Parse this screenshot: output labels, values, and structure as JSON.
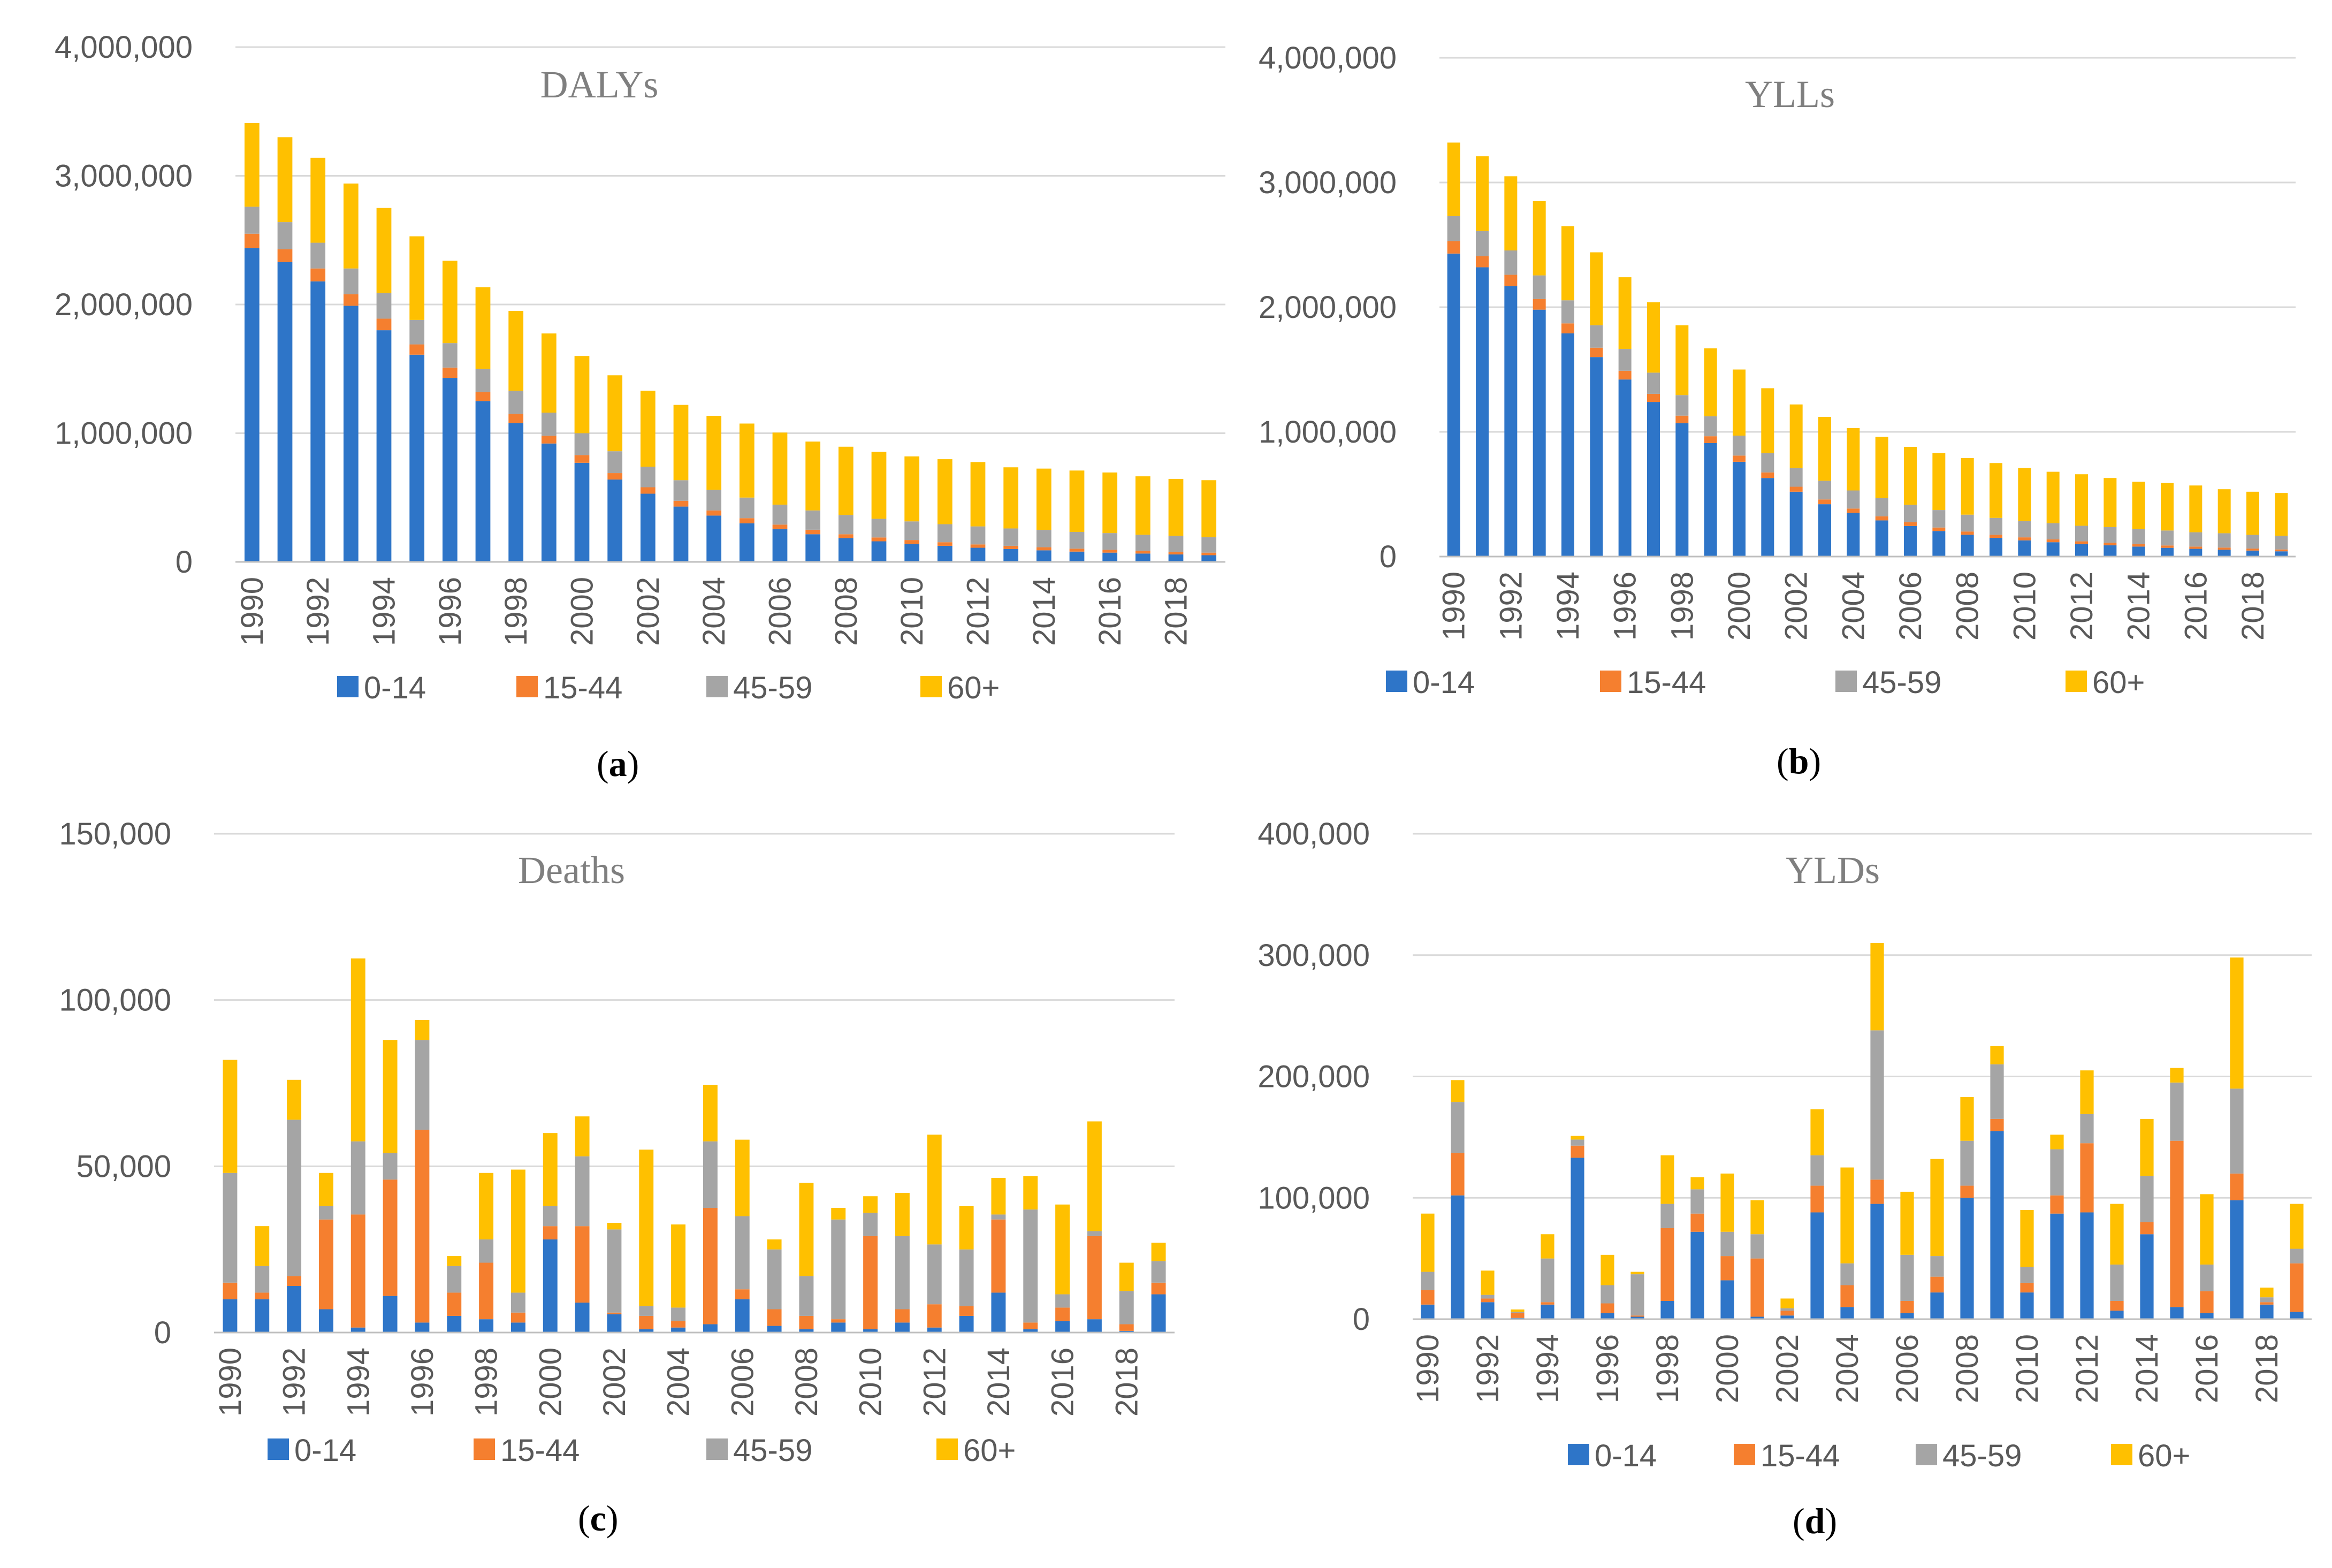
{
  "figure": {
    "series_colors": {
      "0-14": "#2e75c8",
      "15-44": "#f57f2f",
      "45-59": "#a5a5a5",
      "60+": "#ffc000"
    }
  },
  "chart_data": [
    {
      "id": "a",
      "type": "stacked-bar",
      "title": "DALYs",
      "caption_letter": "a",
      "ylim": [
        0,
        4000000
      ],
      "yticks": [
        0,
        1000000,
        2000000,
        3000000,
        4000000
      ],
      "ytick_labels": [
        "0",
        "1,000,000",
        "2,000,000",
        "3,000,000",
        "4,000,000"
      ],
      "xtick_labels": [
        "1990",
        "1992",
        "1994",
        "1996",
        "1998",
        "2000",
        "2002",
        "2004",
        "2006",
        "2008",
        "2010",
        "2012",
        "2014",
        "2016",
        "2018"
      ],
      "categories": [
        "1990",
        "1991",
        "1992",
        "1993",
        "1994",
        "1995",
        "1996",
        "1997",
        "1998",
        "1999",
        "2000",
        "2001",
        "2002",
        "2003",
        "2004",
        "2005",
        "2006",
        "2007",
        "2008",
        "2009",
        "2010",
        "2011",
        "2012",
        "2013",
        "2014",
        "2015",
        "2016",
        "2017",
        "2018",
        "2019"
      ],
      "series": [
        {
          "name": "0-14",
          "values": [
            2440000,
            2330000,
            2180000,
            1990000,
            1800000,
            1610000,
            1430000,
            1250000,
            1080000,
            920000,
            770000,
            640000,
            530000,
            430000,
            360000,
            300000,
            255000,
            215000,
            185000,
            160000,
            140000,
            125000,
            110000,
            100000,
            90000,
            80000,
            72000,
            65000,
            58000,
            52000
          ]
        },
        {
          "name": "15-44",
          "values": [
            110000,
            100000,
            100000,
            90000,
            90000,
            80000,
            80000,
            70000,
            70000,
            60000,
            60000,
            50000,
            50000,
            45000,
            40000,
            40000,
            35000,
            35000,
            30000,
            30000,
            30000,
            28000,
            26000,
            25000,
            24000,
            23000,
            22000,
            21000,
            20000,
            20000
          ]
        },
        {
          "name": "45-59",
          "values": [
            210000,
            210000,
            200000,
            200000,
            200000,
            190000,
            190000,
            180000,
            180000,
            180000,
            170000,
            170000,
            160000,
            160000,
            160000,
            160000,
            155000,
            150000,
            150000,
            145000,
            145000,
            140000,
            140000,
            135000,
            135000,
            130000,
            130000,
            125000,
            125000,
            120000
          ]
        },
        {
          "name": "60+",
          "values": [
            650000,
            660000,
            660000,
            660000,
            660000,
            650000,
            640000,
            635000,
            620000,
            615000,
            600000,
            590000,
            590000,
            585000,
            575000,
            575000,
            560000,
            535000,
            530000,
            520000,
            505000,
            505000,
            500000,
            475000,
            476000,
            477000,
            471000,
            454000,
            442000,
            443000
          ]
        }
      ]
    },
    {
      "id": "b",
      "type": "stacked-bar",
      "title": "YLLs",
      "caption_letter": "b",
      "ylim": [
        0,
        4000000
      ],
      "yticks": [
        0,
        1000000,
        2000000,
        3000000,
        4000000
      ],
      "ytick_labels": [
        "0",
        "1,000,000",
        "2,000,000",
        "3,000,000",
        "4,000,000"
      ],
      "xtick_labels": [
        "1990",
        "1992",
        "1994",
        "1996",
        "1998",
        "2000",
        "2002",
        "2004",
        "2006",
        "2008",
        "2010",
        "2012",
        "2014",
        "2016",
        "2018"
      ],
      "categories": [
        "1990",
        "1991",
        "1992",
        "1993",
        "1994",
        "1995",
        "1996",
        "1997",
        "1998",
        "1999",
        "2000",
        "2001",
        "2002",
        "2003",
        "2004",
        "2005",
        "2006",
        "2007",
        "2008",
        "2009",
        "2010",
        "2011",
        "2012",
        "2013",
        "2014",
        "2015",
        "2016",
        "2017",
        "2018",
        "2019"
      ],
      "series": [
        {
          "name": "0-14",
          "values": [
            2430000,
            2320000,
            2170000,
            1980000,
            1790000,
            1600000,
            1420000,
            1240000,
            1070000,
            910000,
            760000,
            630000,
            520000,
            420000,
            350000,
            290000,
            245000,
            205000,
            175000,
            150000,
            130000,
            115000,
            100000,
            90000,
            80000,
            70000,
            62000,
            55000,
            48000,
            42000
          ]
        },
        {
          "name": "15-44",
          "values": [
            100000,
            90000,
            90000,
            85000,
            80000,
            75000,
            70000,
            65000,
            60000,
            55000,
            50000,
            45000,
            40000,
            38000,
            35000,
            33000,
            30000,
            28000,
            26000,
            25000,
            24000,
            23000,
            22000,
            21000,
            20000,
            19000,
            18000,
            17000,
            16000,
            15000
          ]
        },
        {
          "name": "45-59",
          "values": [
            200000,
            200000,
            195000,
            190000,
            185000,
            180000,
            175000,
            170000,
            165000,
            160000,
            160000,
            155000,
            150000,
            150000,
            145000,
            145000,
            140000,
            140000,
            135000,
            135000,
            130000,
            130000,
            125000,
            125000,
            120000,
            120000,
            115000,
            115000,
            110000,
            110000
          ]
        },
        {
          "name": "60+",
          "values": [
            590000,
            600000,
            595000,
            595000,
            595000,
            585000,
            575000,
            565000,
            560000,
            545000,
            530000,
            520000,
            510000,
            512000,
            500000,
            492000,
            465000,
            457000,
            454000,
            440000,
            426000,
            412000,
            413000,
            394000,
            380000,
            381000,
            375000,
            353000,
            346000,
            343000
          ]
        }
      ]
    },
    {
      "id": "c",
      "type": "stacked-bar",
      "title": "Deaths",
      "caption_letter": "c",
      "ylim": [
        0,
        150000
      ],
      "yticks": [
        0,
        50000,
        100000,
        150000
      ],
      "ytick_labels": [
        "0",
        "50,000",
        "100,000",
        "150,000"
      ],
      "xtick_labels": [
        "1990",
        "1992",
        "1994",
        "1996",
        "1998",
        "2000",
        "2002",
        "2004",
        "2006",
        "2008",
        "2010",
        "2012",
        "2014",
        "2016",
        "2018"
      ],
      "categories": [
        "1990",
        "1991",
        "1992",
        "1993",
        "1994",
        "1995",
        "1996",
        "1997",
        "1998",
        "1999",
        "2000",
        "2001",
        "2002",
        "2003",
        "2004",
        "2005",
        "2006",
        "2007",
        "2008",
        "2009",
        "2010",
        "2011",
        "2012",
        "2013",
        "2014",
        "2015",
        "2016",
        "2017",
        "2018",
        "2019"
      ],
      "series": [
        {
          "name": "0-14",
          "values": [
            10000,
            10000,
            14000,
            7000,
            1500,
            11000,
            3000,
            5000,
            4000,
            3000,
            28000,
            9000,
            5500,
            1000,
            1500,
            2500,
            10000,
            2000,
            1000,
            3000,
            1000,
            3000,
            1500,
            5000,
            12000,
            1000,
            3500,
            4000,
            500,
            11500
          ]
        },
        {
          "name": "15-44",
          "values": [
            5000,
            2000,
            3000,
            27000,
            34000,
            35000,
            58000,
            7000,
            17000,
            3000,
            4000,
            23000,
            500,
            4000,
            2000,
            35000,
            3000,
            5000,
            4000,
            1000,
            28000,
            4000,
            7000,
            3000,
            22000,
            2000,
            4000,
            25000,
            2000,
            3500
          ]
        },
        {
          "name": "45-59",
          "values": [
            33000,
            8000,
            47000,
            4000,
            22000,
            8000,
            27000,
            8000,
            7000,
            6000,
            6000,
            21000,
            25000,
            3000,
            4000,
            20000,
            22000,
            18000,
            12000,
            30000,
            7000,
            22000,
            18000,
            17000,
            1500,
            34000,
            4000,
            1500,
            10000,
            6500
          ]
        },
        {
          "name": "60+",
          "values": [
            34000,
            12000,
            12000,
            10000,
            55000,
            34000,
            6000,
            3000,
            20000,
            37000,
            22000,
            12000,
            2000,
            47000,
            25000,
            17000,
            23000,
            3000,
            28000,
            3500,
            5000,
            13000,
            33000,
            13000,
            11000,
            10000,
            27000,
            33000,
            8500,
            5500
          ]
        }
      ]
    },
    {
      "id": "d",
      "type": "stacked-bar",
      "title": "YLDs",
      "caption_letter": "d",
      "ylim": [
        0,
        400000
      ],
      "yticks": [
        0,
        100000,
        200000,
        300000,
        400000
      ],
      "ytick_labels": [
        "0",
        "100,000",
        "200,000",
        "300,000",
        "400,000"
      ],
      "xtick_labels": [
        "1990",
        "1992",
        "1994",
        "1996",
        "1998",
        "2000",
        "2002",
        "2004",
        "2006",
        "2008",
        "2010",
        "2012",
        "2014",
        "2016",
        "2018"
      ],
      "categories": [
        "1990",
        "1991",
        "1992",
        "1993",
        "1994",
        "1995",
        "1996",
        "1997",
        "1998",
        "1999",
        "2000",
        "2001",
        "2002",
        "2003",
        "2004",
        "2005",
        "2006",
        "2007",
        "2008",
        "2009",
        "2010",
        "2011",
        "2012",
        "2013",
        "2014",
        "2015",
        "2016",
        "2017",
        "2018",
        "2019"
      ],
      "series": [
        {
          "name": "0-14",
          "values": [
            12000,
            102000,
            14000,
            1000,
            12000,
            133000,
            5000,
            2000,
            15000,
            72000,
            32000,
            2000,
            3000,
            88000,
            10000,
            95000,
            5000,
            22000,
            100000,
            155000,
            22000,
            87000,
            88000,
            7000,
            70000,
            10000,
            5000,
            98000,
            12000,
            6000
          ]
        },
        {
          "name": "15-44",
          "values": [
            12000,
            35000,
            3000,
            4000,
            2000,
            10000,
            8000,
            1000,
            60000,
            15000,
            20000,
            48000,
            4000,
            22000,
            18000,
            20000,
            10000,
            13000,
            10000,
            10000,
            8000,
            15000,
            57000,
            8000,
            10000,
            137000,
            18000,
            22000,
            2000,
            40000
          ]
        },
        {
          "name": "45-59",
          "values": [
            15000,
            42000,
            3000,
            1000,
            36000,
            5000,
            15000,
            34000,
            20000,
            20000,
            20000,
            20000,
            2000,
            25000,
            18000,
            123000,
            38000,
            17000,
            37000,
            45000,
            13000,
            38000,
            24000,
            30000,
            38000,
            48000,
            22000,
            70000,
            4000,
            12000
          ]
        },
        {
          "name": "60+",
          "values": [
            48000,
            18000,
            20000,
            2000,
            20000,
            3000,
            25000,
            2000,
            40000,
            10000,
            48000,
            28000,
            8000,
            38000,
            79000,
            72000,
            52000,
            80000,
            36000,
            15000,
            47000,
            12000,
            36000,
            50000,
            47000,
            12000,
            58000,
            108000,
            8000,
            37000
          ]
        }
      ]
    }
  ]
}
